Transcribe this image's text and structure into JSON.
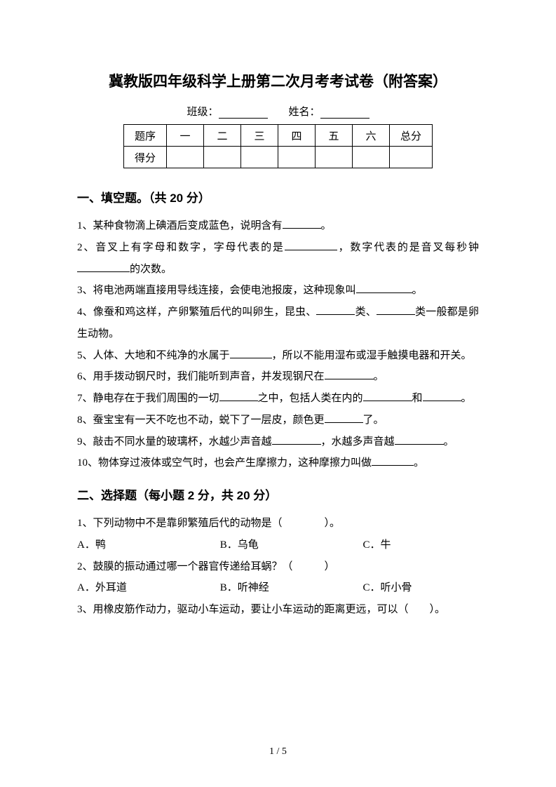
{
  "title": "冀教版四年级科学上册第二次月考考试卷（附答案）",
  "info": {
    "class_label": "班级：",
    "name_label": "姓名："
  },
  "score_table": {
    "row1": [
      "题序",
      "一",
      "二",
      "三",
      "四",
      "五",
      "六",
      "总分"
    ],
    "row2_head": "得分"
  },
  "section1": "一、填空题。（共 20 分）",
  "q1": {
    "p1a": "1、某种食物滴上碘酒后变成蓝色，说明含有",
    "p1b": "。",
    "p2a": "2、音叉上有字母和数字，字母代表的是",
    "p2b": "，数字代表的是音叉每秒钟",
    "p2c": "的次数。",
    "p3a": "3、将电池两端直接用导线连接，会使电池报废，这种现象叫",
    "p3b": "。",
    "p4a": "4、像蚕和鸡这样，产卵繁殖后代的叫卵生，昆虫、",
    "p4b": "类、",
    "p4c": "类一般都是卵生动物。",
    "p5a": "5、人体、大地和不纯净的水属于",
    "p5b": "，所以不能用湿布或湿手触摸电器和开关。",
    "p6a": "6、用手拨动钢尺时，我们能听到声音，并发现钢尺在",
    "p6b": "。",
    "p7a": "7、静电存在于我们周围的一切",
    "p7b": "之中，包括人类在内的",
    "p7c": "和",
    "p7d": "。",
    "p8a": "8、蚕宝宝有一天不吃也不动，蜕下了一层皮，颜色更",
    "p8b": "了。",
    "p9a": "9、敲击不同水量的玻璃杯，水越少声音越",
    "p9b": "，水越多声音越",
    "p9c": "。",
    "p10a": "10、物体穿过液体或空气时，也会产生摩擦力，这种摩擦力叫做",
    "p10b": "。"
  },
  "section2": "二、选择题（每小题 2 分，共 20 分）",
  "q2": {
    "s1": "1、下列动物中不是靠卵繁殖后代的动物是（　　　　）。",
    "s1a": "A．鸭",
    "s1b": "B．乌龟",
    "s1c": "C．牛",
    "s2": "2、鼓膜的振动通过哪一个器官传递给耳蜗？（　　　）",
    "s2a": "A．外耳道",
    "s2b": "B．听神经",
    "s2c": "C．听小骨",
    "s3": "3、用橡皮筋作动力，驱动小车运动，要让小车运动的距离更远，可以（　　）。"
  },
  "pager": "1 / 5",
  "blanks": {
    "w55": 55,
    "w60": 60,
    "w70": 70,
    "w75": 75,
    "w80": 80,
    "w90": 90
  }
}
